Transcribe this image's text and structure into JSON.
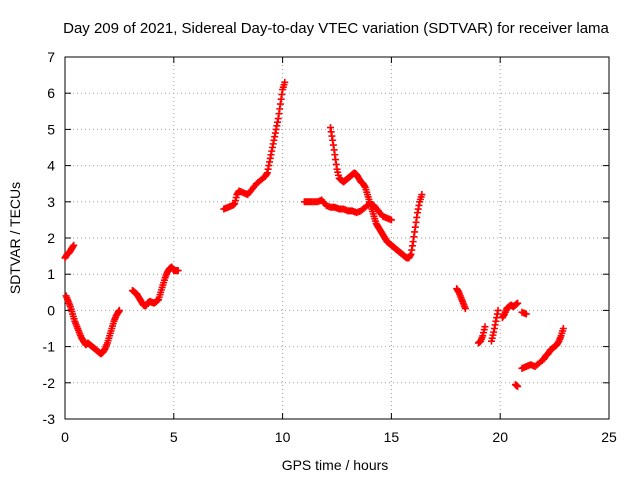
{
  "chart_data": {
    "type": "scatter",
    "title": "Day 209 of 2021, Sidereal Day-to-day VTEC variation (SDTVAR) for receiver lama",
    "xlabel": "GPS time / hours",
    "ylabel": "SDTVAR / TECUs",
    "xlim": [
      0,
      25
    ],
    "ylim": [
      -3,
      7
    ],
    "x_ticks": [
      0,
      5,
      10,
      15,
      20,
      25
    ],
    "y_ticks": [
      -3,
      -2,
      -1,
      0,
      1,
      2,
      3,
      4,
      5,
      6,
      7
    ],
    "grid": true,
    "marker": "plus",
    "color": "#ff0000",
    "segments": [
      [
        [
          0.0,
          1.45
        ],
        [
          0.1,
          1.55
        ],
        [
          0.2,
          1.6
        ],
        [
          0.3,
          1.7
        ],
        [
          0.4,
          1.8
        ]
      ],
      [
        [
          0.05,
          0.4
        ],
        [
          0.15,
          0.25
        ],
        [
          0.25,
          0.1
        ],
        [
          0.35,
          -0.1
        ],
        [
          0.45,
          -0.3
        ],
        [
          0.55,
          -0.45
        ],
        [
          0.65,
          -0.6
        ],
        [
          0.75,
          -0.75
        ],
        [
          0.85,
          -0.85
        ],
        [
          0.95,
          -0.95
        ],
        [
          1.05,
          -0.9
        ],
        [
          1.15,
          -0.95
        ],
        [
          1.25,
          -1.0
        ],
        [
          1.35,
          -1.05
        ],
        [
          1.45,
          -1.1
        ],
        [
          1.55,
          -1.15
        ],
        [
          1.65,
          -1.2
        ],
        [
          1.75,
          -1.15
        ],
        [
          1.85,
          -1.05
        ],
        [
          1.95,
          -0.9
        ],
        [
          2.05,
          -0.7
        ],
        [
          2.15,
          -0.5
        ],
        [
          2.25,
          -0.3
        ],
        [
          2.35,
          -0.15
        ],
        [
          2.45,
          -0.05
        ],
        [
          2.5,
          0.0
        ]
      ],
      [
        [
          3.1,
          0.55
        ],
        [
          3.2,
          0.5
        ],
        [
          3.3,
          0.45
        ],
        [
          3.4,
          0.35
        ],
        [
          3.5,
          0.25
        ],
        [
          3.6,
          0.15
        ],
        [
          3.7,
          0.12
        ],
        [
          3.8,
          0.2
        ],
        [
          3.9,
          0.25
        ],
        [
          4.0,
          0.22
        ],
        [
          4.1,
          0.2
        ],
        [
          4.2,
          0.25
        ],
        [
          4.3,
          0.3
        ],
        [
          4.4,
          0.5
        ],
        [
          4.5,
          0.7
        ],
        [
          4.6,
          0.9
        ],
        [
          4.7,
          1.05
        ],
        [
          4.8,
          1.15
        ],
        [
          4.9,
          1.2
        ],
        [
          5.0,
          1.1
        ],
        [
          5.1,
          1.1
        ],
        [
          5.2,
          1.1
        ]
      ],
      [
        [
          7.3,
          2.8
        ],
        [
          7.5,
          2.85
        ],
        [
          7.7,
          2.9
        ],
        [
          7.8,
          2.95
        ],
        [
          7.9,
          3.2
        ],
        [
          8.0,
          3.3
        ],
        [
          8.2,
          3.25
        ],
        [
          8.4,
          3.2
        ],
        [
          8.6,
          3.35
        ],
        [
          8.8,
          3.5
        ],
        [
          9.0,
          3.6
        ],
        [
          9.2,
          3.7
        ],
        [
          9.3,
          3.8
        ],
        [
          9.4,
          4.1
        ],
        [
          9.5,
          4.4
        ],
        [
          9.6,
          4.7
        ],
        [
          9.7,
          5.0
        ],
        [
          9.8,
          5.3
        ],
        [
          9.9,
          5.7
        ],
        [
          10.0,
          6.1
        ],
        [
          10.1,
          6.3
        ]
      ],
      [
        [
          11.0,
          3.0
        ],
        [
          11.2,
          3.0
        ],
        [
          11.4,
          3.0
        ],
        [
          11.6,
          3.0
        ],
        [
          11.8,
          3.05
        ],
        [
          12.0,
          2.9
        ],
        [
          12.2,
          2.85
        ],
        [
          12.4,
          2.85
        ],
        [
          12.6,
          2.8
        ],
        [
          12.8,
          2.8
        ],
        [
          13.0,
          2.75
        ],
        [
          13.2,
          2.75
        ],
        [
          13.4,
          2.7
        ],
        [
          13.6,
          2.75
        ],
        [
          13.8,
          2.85
        ],
        [
          14.0,
          2.95
        ],
        [
          14.2,
          2.9
        ],
        [
          14.4,
          2.75
        ],
        [
          14.6,
          2.6
        ],
        [
          14.8,
          2.55
        ],
        [
          15.0,
          2.5
        ]
      ],
      [
        [
          12.2,
          5.05
        ],
        [
          12.3,
          4.7
        ],
        [
          12.4,
          4.3
        ],
        [
          12.5,
          3.9
        ],
        [
          12.6,
          3.65
        ],
        [
          12.7,
          3.6
        ],
        [
          12.8,
          3.55
        ],
        [
          12.9,
          3.6
        ],
        [
          13.0,
          3.65
        ],
        [
          13.1,
          3.7
        ],
        [
          13.2,
          3.75
        ],
        [
          13.3,
          3.8
        ],
        [
          13.4,
          3.75
        ],
        [
          13.5,
          3.65
        ],
        [
          13.6,
          3.55
        ],
        [
          13.7,
          3.5
        ],
        [
          13.8,
          3.4
        ],
        [
          13.9,
          3.2
        ],
        [
          14.0,
          3.0
        ],
        [
          14.1,
          2.8
        ],
        [
          14.2,
          2.6
        ],
        [
          14.3,
          2.4
        ],
        [
          14.4,
          2.3
        ],
        [
          14.5,
          2.2
        ],
        [
          14.6,
          2.1
        ],
        [
          14.7,
          2.0
        ],
        [
          14.8,
          1.9
        ],
        [
          14.9,
          1.85
        ],
        [
          15.0,
          1.8
        ],
        [
          15.1,
          1.75
        ],
        [
          15.2,
          1.7
        ],
        [
          15.3,
          1.65
        ],
        [
          15.4,
          1.6
        ],
        [
          15.5,
          1.55
        ],
        [
          15.6,
          1.5
        ],
        [
          15.7,
          1.45
        ],
        [
          15.8,
          1.45
        ],
        [
          15.9,
          1.55
        ],
        [
          16.0,
          1.9
        ],
        [
          16.1,
          2.3
        ],
        [
          16.2,
          2.7
        ],
        [
          16.3,
          3.0
        ],
        [
          16.4,
          3.2
        ]
      ],
      [
        [
          18.0,
          0.6
        ],
        [
          18.1,
          0.5
        ],
        [
          18.2,
          0.35
        ],
        [
          18.3,
          0.2
        ],
        [
          18.4,
          0.05
        ]
      ],
      [
        [
          19.0,
          -0.9
        ],
        [
          19.1,
          -0.85
        ],
        [
          19.2,
          -0.7
        ],
        [
          19.3,
          -0.45
        ]
      ],
      [
        [
          19.6,
          -0.85
        ],
        [
          19.7,
          -0.6
        ],
        [
          19.8,
          -0.3
        ],
        [
          19.9,
          0.0
        ]
      ],
      [
        [
          20.1,
          -0.2
        ],
        [
          20.2,
          -0.1
        ],
        [
          20.3,
          0.05
        ],
        [
          20.4,
          0.1
        ],
        [
          20.5,
          0.15
        ],
        [
          20.6,
          0.1
        ],
        [
          20.7,
          0.15
        ],
        [
          20.8,
          0.2
        ]
      ],
      [
        [
          20.7,
          -2.05
        ],
        [
          20.8,
          -2.1
        ]
      ],
      [
        [
          21.0,
          -0.05
        ],
        [
          21.2,
          -0.1
        ]
      ],
      [
        [
          21.0,
          -1.6
        ],
        [
          21.2,
          -1.55
        ],
        [
          21.4,
          -1.5
        ],
        [
          21.6,
          -1.55
        ],
        [
          21.8,
          -1.45
        ],
        [
          22.0,
          -1.35
        ],
        [
          22.1,
          -1.25
        ],
        [
          22.2,
          -1.2
        ],
        [
          22.3,
          -1.1
        ],
        [
          22.4,
          -1.05
        ],
        [
          22.5,
          -1.0
        ],
        [
          22.6,
          -0.95
        ],
        [
          22.7,
          -0.85
        ],
        [
          22.8,
          -0.7
        ],
        [
          22.9,
          -0.5
        ]
      ]
    ]
  }
}
